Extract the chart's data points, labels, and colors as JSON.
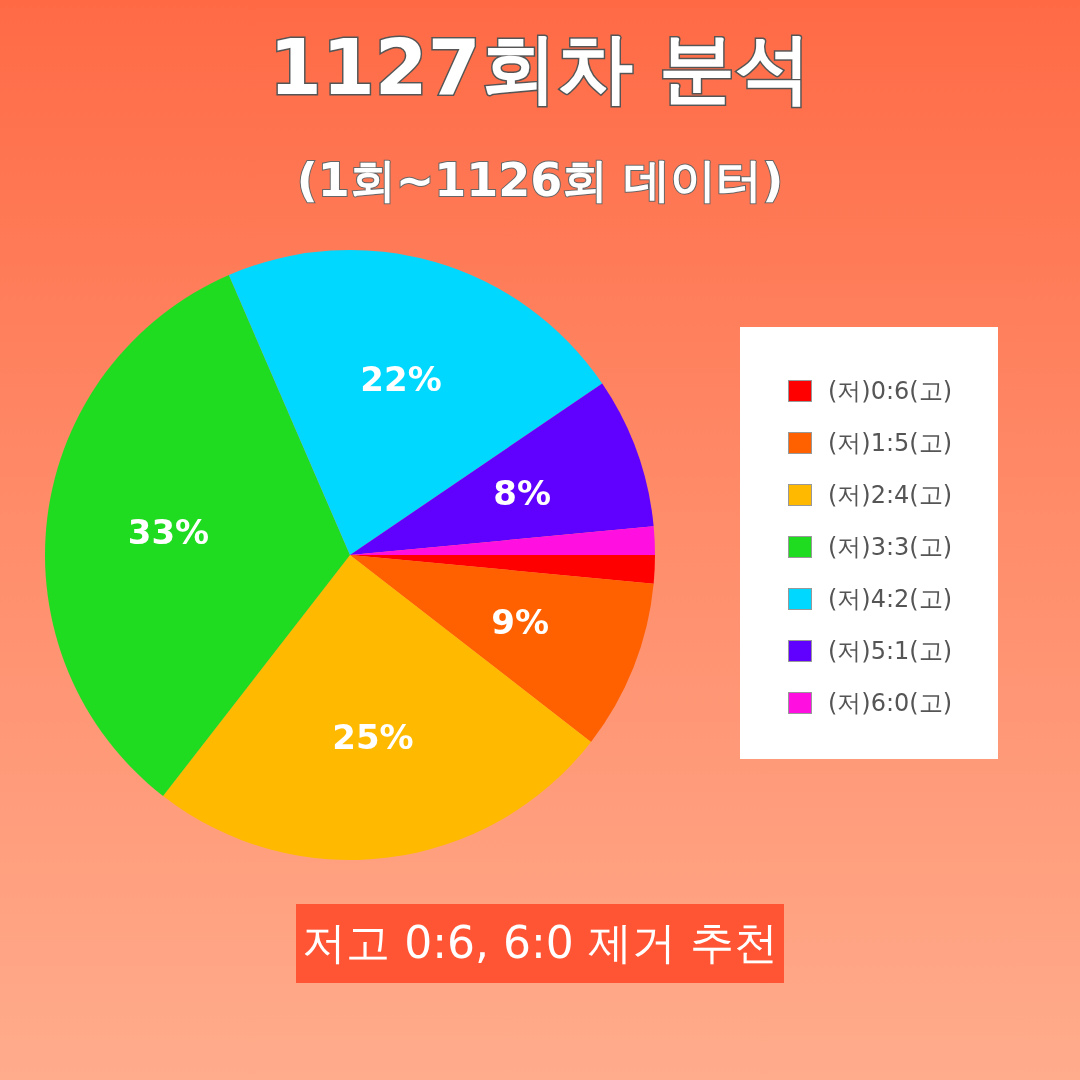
{
  "chart_data": {
    "type": "pie",
    "title": "1127회차 분석",
    "subtitle": "(1회~1126회 데이터)",
    "categories": [
      "(저)0:6(고)",
      "(저)1:5(고)",
      "(저)2:4(고)",
      "(저)3:3(고)",
      "(저)4:2(고)",
      "(저)5:1(고)",
      "(저)6:0(고)"
    ],
    "values": [
      1.5,
      9,
      25,
      33,
      22,
      8,
      1.5
    ],
    "value_labels": [
      null,
      "9%",
      "25%",
      "33%",
      "22%",
      "8%",
      null
    ],
    "colors": [
      "#ff0000",
      "#ff6000",
      "#ffba00",
      "#20dc20",
      "#00d8ff",
      "#6000ff",
      "#ff10e0"
    ],
    "legend": "right",
    "annotations": [
      "저고 0:6, 6:0 제거 추천"
    ]
  }
}
